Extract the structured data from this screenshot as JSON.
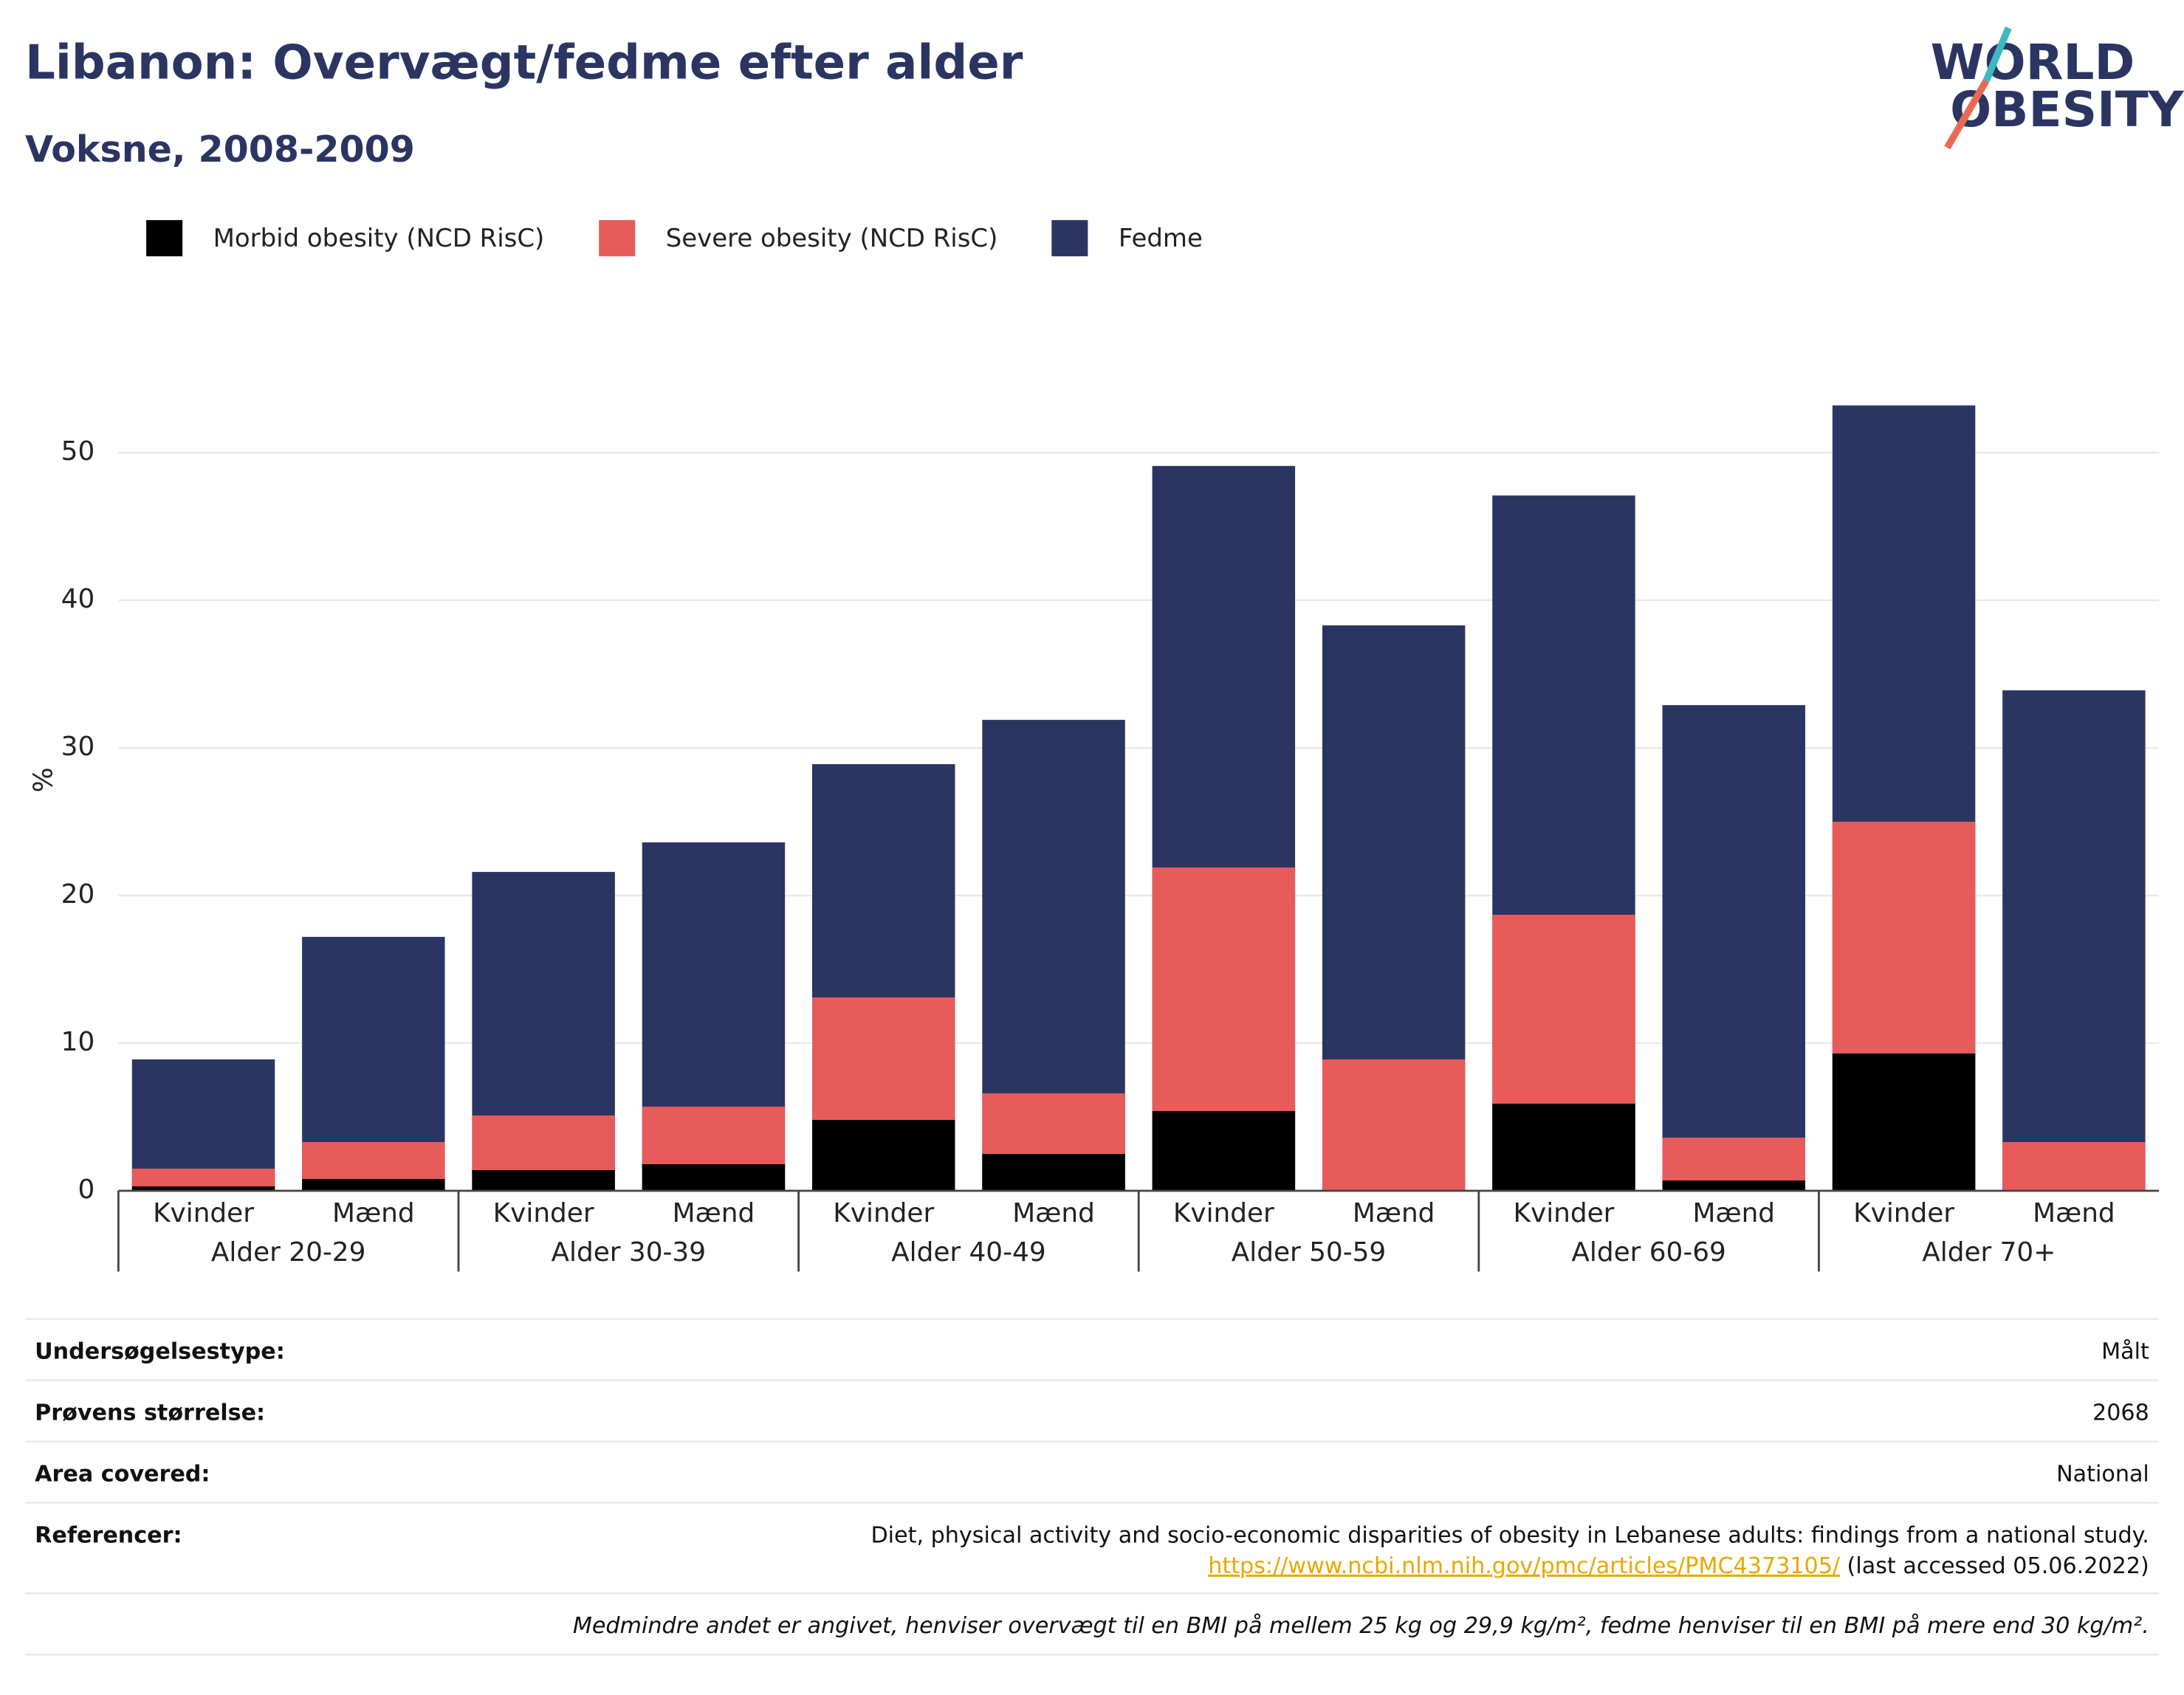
{
  "header": {
    "title": "Libanon: Overvægt/fedme efter alder",
    "subtitle": "Voksne, 2008-2009",
    "logo": [
      "WORLD",
      "OBESITY"
    ]
  },
  "chart_data": {
    "type": "bar",
    "ylabel": "%",
    "categories": [
      "Kvinder",
      "Mænd",
      "Kvinder",
      "Mænd",
      "Kvinder",
      "Mænd",
      "Kvinder",
      "Mænd",
      "Kvinder",
      "Mænd",
      "Kvinder",
      "Mænd"
    ],
    "groups": [
      "Alder 20-29",
      "Alder 30-39",
      "Alder 40-49",
      "Alder 50-59",
      "Alder 60-69",
      "Alder 70+"
    ],
    "series": [
      {
        "name": "Morbid obesity (NCD RisC)",
        "color": "#000000",
        "values": [
          0.3,
          0.8,
          1.4,
          1.8,
          4.8,
          2.5,
          5.4,
          0,
          5.9,
          0.7,
          9.3,
          0
        ]
      },
      {
        "name": "Severe obesity (NCD RisC)",
        "color": "#e85b5b",
        "values": [
          1.5,
          3.3,
          5.1,
          5.7,
          13.1,
          6.6,
          21.9,
          8.9,
          18.7,
          3.6,
          25.0,
          3.3
        ]
      },
      {
        "name": "Fedme",
        "color": "#2b3562",
        "values": [
          8.9,
          17.2,
          21.6,
          23.6,
          28.9,
          31.9,
          49.1,
          38.3,
          47.1,
          32.9,
          53.2,
          33.9
        ]
      }
    ],
    "ylim": [
      0,
      55
    ],
    "yticks": [
      0,
      10,
      20,
      30,
      40,
      50
    ],
    "grid": true,
    "legend": "top"
  },
  "info": {
    "rows": [
      [
        "Undersøgelsestype:",
        "Målt"
      ],
      [
        "Prøvens størrelse:",
        "2068"
      ],
      [
        "Area covered:",
        "National"
      ]
    ],
    "references": {
      "label": "Referencer:",
      "text": "Diet, physical activity and socio-economic disparities of obesity in Lebanese adults: findings from a national study.",
      "link": "https://www.ncbi.nlm.nih.gov/pmc/articles/PMC4373105/",
      "suffix": "(last accessed 05.06.2022)"
    },
    "footnote": "Medmindre andet er angivet, henviser overvægt til en BMI på mellem 25 kg og 29,9 kg/m², fedme henviser til en BMI på mere end 30 kg/m²."
  }
}
